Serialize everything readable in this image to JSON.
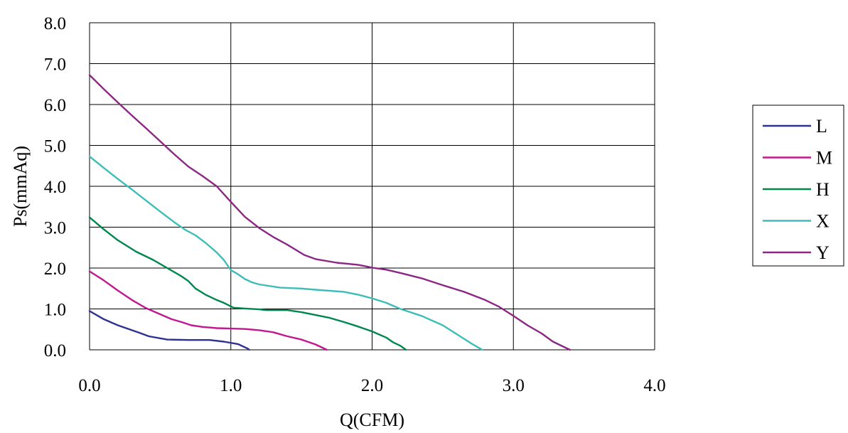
{
  "chart_data": {
    "type": "line",
    "xlabel": "Q(CFM)",
    "ylabel": "Ps(mmAq)",
    "xlim": [
      0,
      4
    ],
    "ylim": [
      0,
      8
    ],
    "x_ticks": [
      "0.0",
      "1.0",
      "2.0",
      "3.0",
      "4.0"
    ],
    "y_ticks": [
      "0.0",
      "1.0",
      "2.0",
      "3.0",
      "4.0",
      "5.0",
      "6.0",
      "7.0",
      "8.0"
    ],
    "grid": true,
    "legend_position": "right",
    "series": [
      {
        "name": "L",
        "color": "#2e3192",
        "points": [
          [
            0,
            0.95
          ],
          [
            0.1,
            0.75
          ],
          [
            0.2,
            0.6
          ],
          [
            0.35,
            0.42
          ],
          [
            0.42,
            0.33
          ],
          [
            0.55,
            0.25
          ],
          [
            0.7,
            0.24
          ],
          [
            0.85,
            0.24
          ],
          [
            0.95,
            0.2
          ],
          [
            1.05,
            0.14
          ],
          [
            1.12,
            0.03
          ],
          [
            1.13,
            0.0
          ]
        ]
      },
      {
        "name": "M",
        "color": "#c2188f",
        "points": [
          [
            0,
            1.92
          ],
          [
            0.1,
            1.7
          ],
          [
            0.2,
            1.45
          ],
          [
            0.3,
            1.22
          ],
          [
            0.4,
            1.02
          ],
          [
            0.5,
            0.87
          ],
          [
            0.58,
            0.75
          ],
          [
            0.65,
            0.68
          ],
          [
            0.72,
            0.6
          ],
          [
            0.8,
            0.56
          ],
          [
            0.9,
            0.53
          ],
          [
            1.0,
            0.52
          ],
          [
            1.1,
            0.51
          ],
          [
            1.2,
            0.48
          ],
          [
            1.3,
            0.43
          ],
          [
            1.4,
            0.33
          ],
          [
            1.5,
            0.25
          ],
          [
            1.6,
            0.13
          ],
          [
            1.68,
            0.0
          ]
        ]
      },
      {
        "name": "H",
        "color": "#00874d",
        "points": [
          [
            0,
            3.24
          ],
          [
            0.1,
            2.95
          ],
          [
            0.2,
            2.68
          ],
          [
            0.33,
            2.4
          ],
          [
            0.45,
            2.2
          ],
          [
            0.55,
            2.0
          ],
          [
            0.65,
            1.8
          ],
          [
            0.7,
            1.68
          ],
          [
            0.75,
            1.5
          ],
          [
            0.82,
            1.35
          ],
          [
            0.9,
            1.22
          ],
          [
            0.95,
            1.15
          ],
          [
            1.02,
            1.03
          ],
          [
            1.1,
            1.01
          ],
          [
            1.2,
            0.99
          ],
          [
            1.25,
            0.97
          ],
          [
            1.4,
            0.97
          ],
          [
            1.5,
            0.92
          ],
          [
            1.6,
            0.85
          ],
          [
            1.7,
            0.78
          ],
          [
            1.8,
            0.68
          ],
          [
            1.9,
            0.57
          ],
          [
            2.0,
            0.45
          ],
          [
            2.1,
            0.3
          ],
          [
            2.15,
            0.18
          ],
          [
            2.2,
            0.1
          ],
          [
            2.24,
            0.0
          ]
        ]
      },
      {
        "name": "X",
        "color": "#3dbdb7",
        "points": [
          [
            0,
            4.73
          ],
          [
            0.1,
            4.45
          ],
          [
            0.2,
            4.18
          ],
          [
            0.3,
            3.92
          ],
          [
            0.4,
            3.65
          ],
          [
            0.5,
            3.38
          ],
          [
            0.6,
            3.12
          ],
          [
            0.68,
            2.93
          ],
          [
            0.75,
            2.8
          ],
          [
            0.82,
            2.62
          ],
          [
            0.9,
            2.38
          ],
          [
            0.95,
            2.2
          ],
          [
            1.0,
            1.95
          ],
          [
            1.05,
            1.85
          ],
          [
            1.1,
            1.73
          ],
          [
            1.15,
            1.65
          ],
          [
            1.2,
            1.6
          ],
          [
            1.35,
            1.52
          ],
          [
            1.5,
            1.5
          ],
          [
            1.6,
            1.47
          ],
          [
            1.8,
            1.42
          ],
          [
            1.9,
            1.35
          ],
          [
            2.0,
            1.26
          ],
          [
            2.1,
            1.15
          ],
          [
            2.2,
            1.0
          ],
          [
            2.35,
            0.83
          ],
          [
            2.5,
            0.6
          ],
          [
            2.6,
            0.38
          ],
          [
            2.7,
            0.16
          ],
          [
            2.78,
            0.0
          ]
        ]
      },
      {
        "name": "Y",
        "color": "#8c2785",
        "points": [
          [
            0,
            6.72
          ],
          [
            0.1,
            6.38
          ],
          [
            0.2,
            6.05
          ],
          [
            0.3,
            5.73
          ],
          [
            0.4,
            5.42
          ],
          [
            0.5,
            5.1
          ],
          [
            0.6,
            4.78
          ],
          [
            0.7,
            4.48
          ],
          [
            0.8,
            4.25
          ],
          [
            0.9,
            4.0
          ],
          [
            1.0,
            3.62
          ],
          [
            1.1,
            3.25
          ],
          [
            1.2,
            2.98
          ],
          [
            1.3,
            2.76
          ],
          [
            1.4,
            2.57
          ],
          [
            1.52,
            2.32
          ],
          [
            1.6,
            2.22
          ],
          [
            1.75,
            2.13
          ],
          [
            1.9,
            2.08
          ],
          [
            2.0,
            2.01
          ],
          [
            2.1,
            1.96
          ],
          [
            2.2,
            1.88
          ],
          [
            2.35,
            1.75
          ],
          [
            2.5,
            1.58
          ],
          [
            2.65,
            1.42
          ],
          [
            2.8,
            1.22
          ],
          [
            2.9,
            1.05
          ],
          [
            3.0,
            0.83
          ],
          [
            3.1,
            0.6
          ],
          [
            3.2,
            0.4
          ],
          [
            3.28,
            0.2
          ],
          [
            3.4,
            0.0
          ]
        ]
      }
    ]
  }
}
